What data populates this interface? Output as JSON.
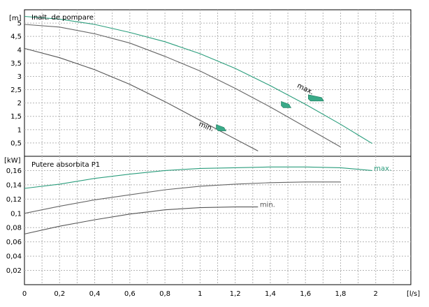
{
  "colors": {
    "max": "#2a9d7c",
    "mid": "#666666",
    "min": "#555555",
    "marker": "#3aaa88",
    "grid": "#b5b5b5",
    "frame": "#000000"
  },
  "chart_data": [
    {
      "type": "line",
      "title": "Inalt. de pompare",
      "ylabel": "[m]",
      "xlabel": "[l/s]",
      "xlim": [
        0,
        2.2
      ],
      "ylim": [
        0,
        5.5
      ],
      "grid": true,
      "x_ticks": [
        "0",
        "0,2",
        "0,4",
        "0,6",
        "0,8",
        "1",
        "1,2",
        "1,4",
        "1,6",
        "1,8",
        "2"
      ],
      "y_ticks": [
        "0,5",
        "1",
        "1,5",
        "2",
        "2,5",
        "3",
        "3,5",
        "4",
        "4,5",
        "5"
      ],
      "series": [
        {
          "name": "max.",
          "color_key": "max",
          "x": [
            0,
            0.2,
            0.4,
            0.6,
            0.8,
            1.0,
            1.2,
            1.4,
            1.6,
            1.8,
            1.98
          ],
          "y": [
            5.25,
            5.15,
            4.95,
            4.65,
            4.3,
            3.85,
            3.3,
            2.65,
            1.95,
            1.2,
            0.48
          ]
        },
        {
          "name": "",
          "color_key": "mid",
          "x": [
            0,
            0.2,
            0.4,
            0.6,
            0.8,
            1.0,
            1.2,
            1.4,
            1.6,
            1.8
          ],
          "y": [
            4.95,
            4.85,
            4.6,
            4.25,
            3.75,
            3.2,
            2.55,
            1.85,
            1.1,
            0.35
          ]
        },
        {
          "name": "min.",
          "color_key": "min",
          "x": [
            0,
            0.2,
            0.4,
            0.6,
            0.8,
            1.0,
            1.2,
            1.33
          ],
          "y": [
            4.05,
            3.7,
            3.25,
            2.7,
            2.05,
            1.35,
            0.65,
            0.2
          ]
        }
      ],
      "annotations": [
        {
          "text": "max.",
          "x": 1.55,
          "y": 2.6
        },
        {
          "text": "min.",
          "x": 0.99,
          "y": 1.15
        }
      ],
      "markers": [
        {
          "x": 1.66,
          "y": 2.1
        },
        {
          "x": 1.49,
          "y": 1.85
        },
        {
          "x": 1.12,
          "y": 0.98
        }
      ]
    },
    {
      "type": "line",
      "title": "Putere absorbita P1",
      "ylabel": "[kW]",
      "xlabel": "[l/s]",
      "xlim": [
        0,
        2.2
      ],
      "ylim": [
        0,
        0.18
      ],
      "grid": true,
      "x_ticks": [
        "0",
        "0,2",
        "0,4",
        "0,6",
        "0,8",
        "1",
        "1,2",
        "1,4",
        "1,6",
        "1,8",
        "2"
      ],
      "y_ticks": [
        "0,02",
        "0,04",
        "0,06",
        "0,08",
        "0,1",
        "0,12",
        "0,14",
        "0,16"
      ],
      "series": [
        {
          "name": "max.",
          "color_key": "max",
          "x": [
            0,
            0.2,
            0.4,
            0.6,
            0.8,
            1.0,
            1.2,
            1.4,
            1.6,
            1.8,
            1.98
          ],
          "y": [
            0.135,
            0.141,
            0.149,
            0.155,
            0.16,
            0.163,
            0.164,
            0.165,
            0.165,
            0.164,
            0.16
          ]
        },
        {
          "name": "",
          "color_key": "mid",
          "x": [
            0,
            0.2,
            0.4,
            0.6,
            0.8,
            1.0,
            1.2,
            1.4,
            1.6,
            1.8
          ],
          "y": [
            0.1,
            0.11,
            0.119,
            0.126,
            0.133,
            0.138,
            0.141,
            0.143,
            0.144,
            0.144
          ]
        },
        {
          "name": "min.",
          "color_key": "min",
          "x": [
            0,
            0.2,
            0.4,
            0.6,
            0.8,
            1.0,
            1.2,
            1.33
          ],
          "y": [
            0.071,
            0.082,
            0.091,
            0.099,
            0.105,
            0.108,
            0.109,
            0.109
          ]
        }
      ],
      "annotations": [
        {
          "text": "max.",
          "x": 1.99,
          "y": 0.16
        },
        {
          "text": "min.",
          "x": 1.34,
          "y": 0.109
        }
      ]
    }
  ]
}
